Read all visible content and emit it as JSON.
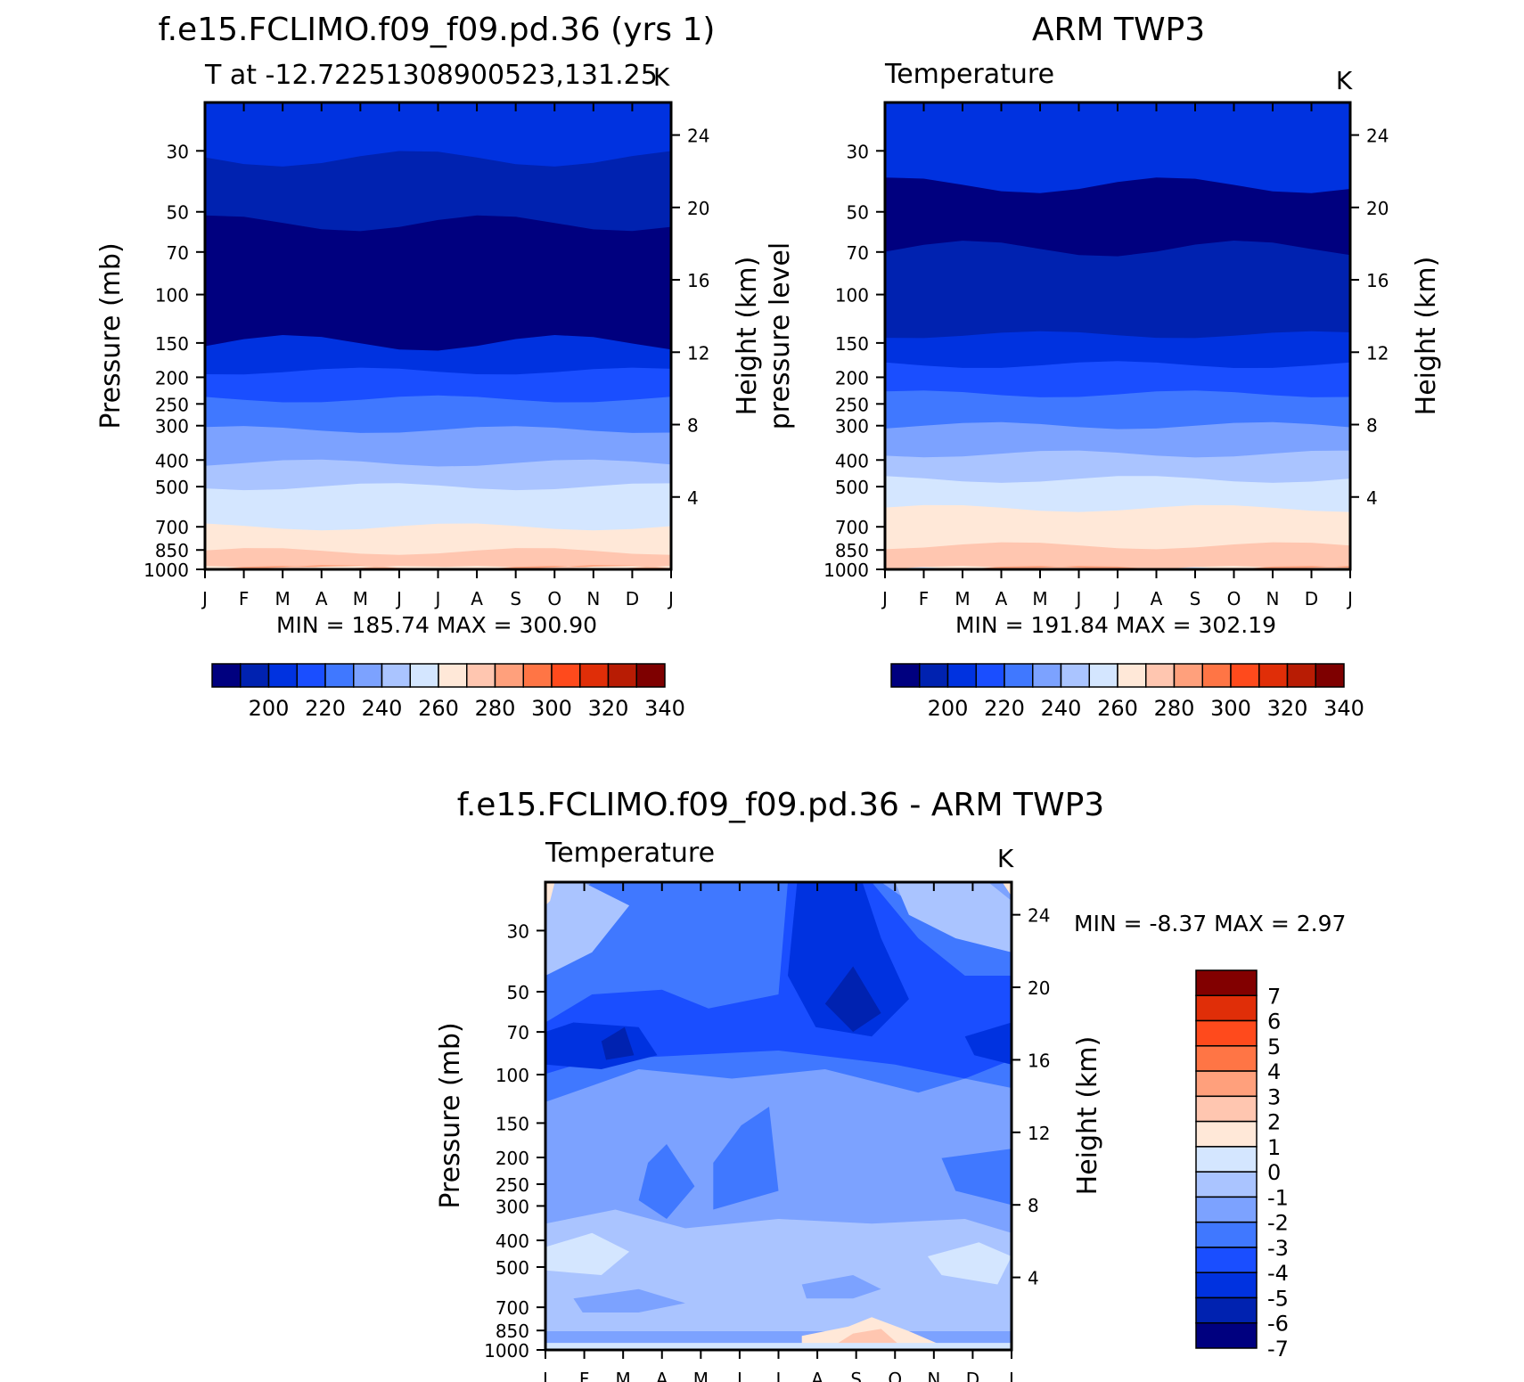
{
  "months": [
    "J",
    "F",
    "M",
    "A",
    "M",
    "J",
    "J",
    "A",
    "S",
    "O",
    "N",
    "D",
    "J"
  ],
  "pressure_ticks": [
    30,
    50,
    70,
    100,
    150,
    200,
    250,
    300,
    400,
    500,
    700,
    850,
    1000
  ],
  "height_ticks": [
    4,
    8,
    12,
    16,
    20,
    24
  ],
  "chart_data": [
    {
      "id": "model",
      "type": "contour",
      "title": "f.e15.FCLIMO.f09_f09.pd.36 (yrs 1)",
      "subtitle_left": "T at -12.72251308900523,131.25",
      "subtitle_right": "K",
      "ylabel_left": "Pressure (mb)",
      "ylabel_right": "Height (km)",
      "ylim_mb": [
        20,
        1000
      ],
      "min_max_text": "MIN = 185.74 MAX = 300.90",
      "contour_tops_mb": [
        1000,
        992,
        860,
        700,
        500,
        410,
        310,
        240,
        190,
        150,
        55,
        32
      ],
      "fill_classes": [
        8,
        10,
        9,
        8,
        7,
        6,
        5,
        4,
        3,
        2,
        0,
        1,
        2
      ],
      "colorbar_labels": [
        "200",
        "220",
        "240",
        "260",
        "280",
        "300",
        "320",
        "340"
      ]
    },
    {
      "id": "obs",
      "type": "contour",
      "title": "ARM TWP3",
      "subtitle_left": "Temperature",
      "subtitle_right": "K",
      "ylabel_left": "pressure level",
      "ylabel_right": "Height (km)",
      "ylim_mb": [
        20,
        1000
      ],
      "min_max_text": "MIN = 191.84 MAX = 302.19",
      "contour_tops_mb": [
        1000,
        820,
        600,
        470,
        380,
        300,
        230,
        180,
        140,
        68,
        40
      ],
      "fill_classes": [
        10,
        9,
        8,
        7,
        6,
        5,
        4,
        3,
        2,
        1,
        0,
        1,
        2
      ],
      "colorbar_labels": [
        "200",
        "220",
        "240",
        "260",
        "280",
        "300",
        "320",
        "340"
      ]
    },
    {
      "id": "diff",
      "type": "contour",
      "title": "f.e15.FCLIMO.f09_f09.pd.36 - ARM TWP3",
      "subtitle_left": "Temperature",
      "subtitle_right": "K",
      "ylabel_left": "Pressure (mb)",
      "ylabel_right": "Height (km)",
      "ylim_mb": [
        20,
        1000
      ],
      "min_max_text": "MIN = -8.37 MAX = 2.97",
      "colorbar_labels": [
        "7",
        "6",
        "5",
        "4",
        "3",
        "2",
        "1",
        "0",
        "-1",
        "-2",
        "-3",
        "-4",
        "-5",
        "-6",
        "-7"
      ]
    }
  ],
  "colormap_temperature": [
    "#00007f",
    "#0022b0",
    "#0032e0",
    "#1a4eff",
    "#4078ff",
    "#7ca2ff",
    "#aac4ff",
    "#d4e6ff",
    "#ffe8d8",
    "#ffc6b0",
    "#ffa07c",
    "#ff7545",
    "#ff4a1c",
    "#e02e08",
    "#b81c04",
    "#7e0000"
  ],
  "colormap_difference": [
    "#820000",
    "#b81c04",
    "#e02e08",
    "#ff4a1c",
    "#ff7545",
    "#ffa07c",
    "#ffc6b0",
    "#ffe8d8",
    "#d4e6ff",
    "#aac4ff",
    "#7ca2ff",
    "#4078ff",
    "#1a4eff",
    "#0032e0",
    "#0022b0",
    "#00007f"
  ]
}
